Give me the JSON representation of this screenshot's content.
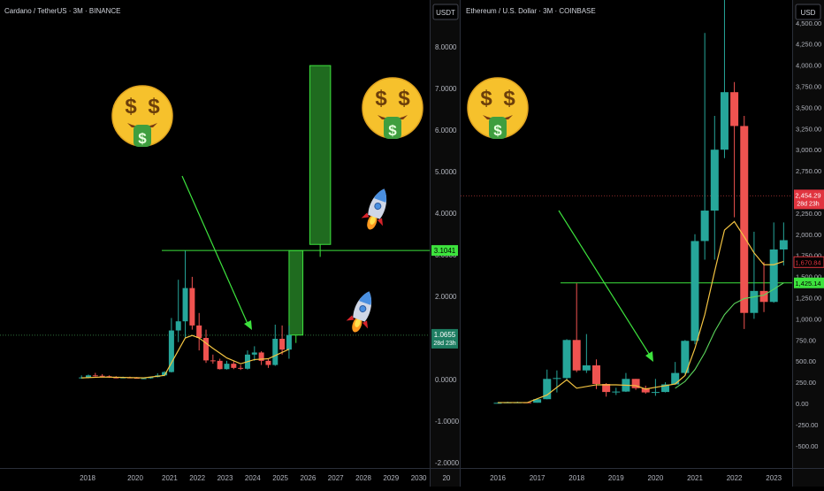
{
  "left": {
    "header": "Cardano / TetherUS · 3M · BINANCE",
    "currency": "USDT",
    "y_ticks": [
      "8.0000",
      "7.0000",
      "6.0000",
      "5.0000",
      "4.0000",
      "3.0000",
      "2.0000",
      "1.0000",
      "0.0000",
      "-1.0000",
      "-2.0000"
    ],
    "x_ticks": [
      "2018",
      "2020",
      "2021",
      "2022",
      "2023",
      "2024",
      "2025",
      "2026",
      "2027",
      "2028",
      "2029",
      "2030",
      "20"
    ],
    "level_label": "3.1041",
    "price_label": "1.0655",
    "countdown": "28d 23h"
  },
  "right": {
    "header": "Ethereum / U.S. Dollar · 3M · COINBASE",
    "currency": "USD",
    "y_ticks": [
      "4,500.00",
      "4,250.00",
      "4,000.00",
      "3,750.00",
      "3,500.00",
      "3,250.00",
      "3,000.00",
      "2,750.00",
      "2,500.00",
      "2,250.00",
      "2,000.00",
      "1,750.00",
      "1,500.00",
      "1,250.00",
      "1,000.00",
      "750.00",
      "500.00",
      "250.00",
      "0.00",
      "-250.00",
      "-500.00"
    ],
    "x_ticks": [
      "2016",
      "2017",
      "2018",
      "2019",
      "2020",
      "2021",
      "2022",
      "2023"
    ],
    "price_label": "2,454.29",
    "countdown": "28d 23h",
    "ma_label": "1,670.84",
    "level_label": "1,425.14"
  },
  "colors": {
    "up": "#26a69a",
    "down": "#ef5350",
    "ma": "#f5c542",
    "arrow": "#3de33d",
    "box": "#1f6b1f",
    "bg": "#000000"
  },
  "icons": [
    "money-face-icon",
    "rocket-icon"
  ],
  "chart_data": [
    {
      "type": "candlestick",
      "title": "Cardano / TetherUS · 3M · BINANCE",
      "ylim": [
        -2,
        8.4
      ],
      "candles": [
        {
          "t": 2017.75,
          "o": 0.03,
          "h": 0.1,
          "l": 0.02,
          "c": 0.05
        },
        {
          "t": 2018.0,
          "o": 0.05,
          "h": 0.12,
          "l": 0.03,
          "c": 0.1
        },
        {
          "t": 2018.25,
          "o": 0.1,
          "h": 0.16,
          "l": 0.07,
          "c": 0.09
        },
        {
          "t": 2018.5,
          "o": 0.09,
          "h": 0.13,
          "l": 0.06,
          "c": 0.08
        },
        {
          "t": 2018.75,
          "o": 0.08,
          "h": 0.1,
          "l": 0.04,
          "c": 0.05
        },
        {
          "t": 2019.0,
          "o": 0.05,
          "h": 0.08,
          "l": 0.03,
          "c": 0.04
        },
        {
          "t": 2019.25,
          "o": 0.04,
          "h": 0.07,
          "l": 0.03,
          "c": 0.05
        },
        {
          "t": 2019.5,
          "o": 0.05,
          "h": 0.07,
          "l": 0.03,
          "c": 0.04
        },
        {
          "t": 2019.75,
          "o": 0.04,
          "h": 0.06,
          "l": 0.03,
          "c": 0.03
        },
        {
          "t": 2020.0,
          "o": 0.03,
          "h": 0.05,
          "l": 0.02,
          "c": 0.03
        },
        {
          "t": 2020.25,
          "o": 0.03,
          "h": 0.07,
          "l": 0.02,
          "c": 0.06
        },
        {
          "t": 2020.5,
          "o": 0.06,
          "h": 0.15,
          "l": 0.05,
          "c": 0.1
        },
        {
          "t": 2020.75,
          "o": 0.1,
          "h": 0.2,
          "l": 0.08,
          "c": 0.18
        },
        {
          "t": 2021.0,
          "o": 0.18,
          "h": 1.48,
          "l": 0.17,
          "c": 1.18
        },
        {
          "t": 2021.25,
          "o": 1.18,
          "h": 2.4,
          "l": 0.9,
          "c": 1.4
        },
        {
          "t": 2021.5,
          "o": 1.4,
          "h": 3.1,
          "l": 1.0,
          "c": 2.2
        },
        {
          "t": 2021.75,
          "o": 2.2,
          "h": 2.47,
          "l": 1.2,
          "c": 1.3
        },
        {
          "t": 2022.0,
          "o": 1.3,
          "h": 1.6,
          "l": 0.7,
          "c": 1.0
        },
        {
          "t": 2022.25,
          "o": 1.0,
          "h": 1.2,
          "l": 0.4,
          "c": 0.46
        },
        {
          "t": 2022.5,
          "o": 0.46,
          "h": 0.6,
          "l": 0.38,
          "c": 0.45
        },
        {
          "t": 2022.75,
          "o": 0.45,
          "h": 0.5,
          "l": 0.24,
          "c": 0.25
        },
        {
          "t": 2023.0,
          "o": 0.25,
          "h": 0.45,
          "l": 0.24,
          "c": 0.38
        },
        {
          "t": 2023.25,
          "o": 0.38,
          "h": 0.45,
          "l": 0.25,
          "c": 0.28
        },
        {
          "t": 2023.5,
          "o": 0.28,
          "h": 0.35,
          "l": 0.23,
          "c": 0.26
        },
        {
          "t": 2023.75,
          "o": 0.26,
          "h": 0.7,
          "l": 0.24,
          "c": 0.6
        },
        {
          "t": 2024.0,
          "o": 0.6,
          "h": 0.8,
          "l": 0.45,
          "c": 0.65
        },
        {
          "t": 2024.25,
          "o": 0.65,
          "h": 0.68,
          "l": 0.35,
          "c": 0.45
        },
        {
          "t": 2024.5,
          "o": 0.45,
          "h": 0.5,
          "l": 0.28,
          "c": 0.35
        },
        {
          "t": 2024.75,
          "o": 0.35,
          "h": 1.32,
          "l": 0.33,
          "c": 0.98
        },
        {
          "t": 2025.0,
          "o": 0.98,
          "h": 1.3,
          "l": 0.6,
          "c": 0.72
        },
        {
          "t": 2025.25,
          "o": 0.72,
          "h": 1.3,
          "l": 0.5,
          "c": 1.07
        }
      ],
      "ma": [
        [
          2017.75,
          0.04
        ],
        [
          2018.5,
          0.06
        ],
        [
          2019.25,
          0.05
        ],
        [
          2020.0,
          0.04
        ],
        [
          2020.75,
          0.1
        ],
        [
          2021.25,
          0.7
        ],
        [
          2021.5,
          1.0
        ],
        [
          2021.75,
          1.06
        ],
        [
          2022.0,
          1.0
        ],
        [
          2022.5,
          0.75
        ],
        [
          2023.0,
          0.52
        ],
        [
          2023.5,
          0.38
        ],
        [
          2024.0,
          0.48
        ],
        [
          2024.5,
          0.5
        ],
        [
          2025.25,
          0.73
        ]
      ],
      "projection_boxes": [
        {
          "t_from": 2025.25,
          "t_to": 2025.75,
          "low": 1.07,
          "high": 3.1
        },
        {
          "t_from": 2026.0,
          "t_to": 2026.75,
          "low": 3.25,
          "high": 7.55
        }
      ],
      "hlines": [
        {
          "value": 3.1041,
          "label": "3.1041",
          "style": "solid"
        },
        {
          "value": 1.0655,
          "label": "1.0655",
          "style": "dotted"
        }
      ]
    },
    {
      "type": "candlestick",
      "title": "Ethereum / U.S. Dollar · 3M · COINBASE",
      "ylim": [
        -700,
        4750
      ],
      "candles": [
        {
          "t": 2016.0,
          "o": 1,
          "h": 12,
          "l": 1,
          "c": 7
        },
        {
          "t": 2016.25,
          "o": 7,
          "h": 20,
          "l": 6,
          "c": 12
        },
        {
          "t": 2016.5,
          "o": 12,
          "h": 21,
          "l": 7,
          "c": 13
        },
        {
          "t": 2016.75,
          "o": 13,
          "h": 15,
          "l": 7,
          "c": 8
        },
        {
          "t": 2017.0,
          "o": 8,
          "h": 55,
          "l": 8,
          "c": 50
        },
        {
          "t": 2017.25,
          "o": 50,
          "h": 400,
          "l": 48,
          "c": 290
        },
        {
          "t": 2017.5,
          "o": 290,
          "h": 390,
          "l": 130,
          "c": 300
        },
        {
          "t": 2017.75,
          "o": 300,
          "h": 760,
          "l": 270,
          "c": 750
        },
        {
          "t": 2018.0,
          "o": 750,
          "h": 1420,
          "l": 370,
          "c": 390
        },
        {
          "t": 2018.25,
          "o": 390,
          "h": 820,
          "l": 360,
          "c": 450
        },
        {
          "t": 2018.5,
          "o": 450,
          "h": 520,
          "l": 170,
          "c": 230
        },
        {
          "t": 2018.75,
          "o": 230,
          "h": 240,
          "l": 80,
          "c": 135
        },
        {
          "t": 2019.0,
          "o": 135,
          "h": 185,
          "l": 100,
          "c": 140
        },
        {
          "t": 2019.25,
          "o": 140,
          "h": 360,
          "l": 135,
          "c": 290
        },
        {
          "t": 2019.5,
          "o": 290,
          "h": 290,
          "l": 160,
          "c": 180
        },
        {
          "t": 2019.75,
          "o": 180,
          "h": 210,
          "l": 115,
          "c": 130
        },
        {
          "t": 2020.0,
          "o": 130,
          "h": 290,
          "l": 90,
          "c": 135
        },
        {
          "t": 2020.25,
          "o": 135,
          "h": 250,
          "l": 130,
          "c": 225
        },
        {
          "t": 2020.5,
          "o": 225,
          "h": 490,
          "l": 220,
          "c": 360
        },
        {
          "t": 2020.75,
          "o": 360,
          "h": 750,
          "l": 340,
          "c": 740
        },
        {
          "t": 2021.0,
          "o": 740,
          "h": 2000,
          "l": 700,
          "c": 1920
        },
        {
          "t": 2021.25,
          "o": 1920,
          "h": 4380,
          "l": 1700,
          "c": 2280
        },
        {
          "t": 2021.5,
          "o": 2280,
          "h": 3400,
          "l": 1700,
          "c": 3000
        },
        {
          "t": 2021.75,
          "o": 3000,
          "h": 4870,
          "l": 2900,
          "c": 3680
        },
        {
          "t": 2022.0,
          "o": 3680,
          "h": 3800,
          "l": 2200,
          "c": 3280
        },
        {
          "t": 2022.25,
          "o": 3280,
          "h": 3400,
          "l": 880,
          "c": 1070
        },
        {
          "t": 2022.5,
          "o": 1070,
          "h": 2030,
          "l": 1000,
          "c": 1330
        },
        {
          "t": 2022.75,
          "o": 1330,
          "h": 1670,
          "l": 1080,
          "c": 1200
        },
        {
          "t": 2023.0,
          "o": 1200,
          "h": 2140,
          "l": 1190,
          "c": 1820
        },
        {
          "t": 2023.25,
          "o": 1820,
          "h": 2140,
          "l": 1630,
          "c": 1930
        }
      ],
      "ma": [
        [
          2016.0,
          10
        ],
        [
          2016.75,
          10
        ],
        [
          2017.25,
          100
        ],
        [
          2017.75,
          280
        ],
        [
          2018.0,
          180
        ],
        [
          2018.5,
          220
        ],
        [
          2019.0,
          220
        ],
        [
          2019.5,
          210
        ],
        [
          2019.75,
          170
        ],
        [
          2020.0,
          190
        ],
        [
          2020.5,
          230
        ],
        [
          2020.75,
          330
        ],
        [
          2021.0,
          650
        ],
        [
          2021.25,
          1050
        ],
        [
          2021.5,
          1560
        ],
        [
          2021.75,
          2050
        ],
        [
          2022.0,
          2150
        ],
        [
          2022.25,
          1970
        ],
        [
          2022.5,
          1780
        ],
        [
          2022.75,
          1640
        ],
        [
          2023.0,
          1640
        ],
        [
          2023.25,
          1680
        ]
      ],
      "ma2": [
        [
          2020.5,
          180
        ],
        [
          2020.75,
          260
        ],
        [
          2021.0,
          400
        ],
        [
          2021.25,
          600
        ],
        [
          2021.5,
          850
        ],
        [
          2021.75,
          1050
        ],
        [
          2022.0,
          1180
        ],
        [
          2022.25,
          1240
        ],
        [
          2022.5,
          1260
        ],
        [
          2022.75,
          1280
        ],
        [
          2023.0,
          1350
        ],
        [
          2023.25,
          1425
        ]
      ],
      "hlines": [
        {
          "value": 2454.29,
          "label": "2,454.29",
          "style": "dotted"
        },
        {
          "value": 1425.14,
          "label": "1,425.14",
          "style": "solid"
        },
        {
          "value": 1670.84,
          "label": "1,670.84",
          "style": "none"
        }
      ]
    }
  ]
}
